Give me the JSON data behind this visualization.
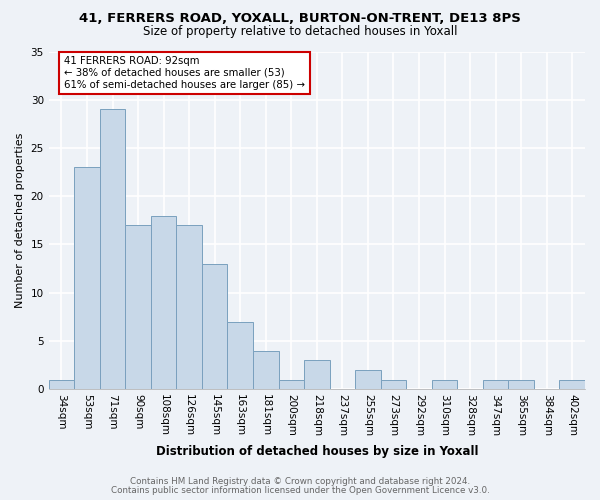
{
  "title1": "41, FERRERS ROAD, YOXALL, BURTON-ON-TRENT, DE13 8PS",
  "title2": "Size of property relative to detached houses in Yoxall",
  "xlabel": "Distribution of detached houses by size in Yoxall",
  "ylabel": "Number of detached properties",
  "footnote1": "Contains HM Land Registry data © Crown copyright and database right 2024.",
  "footnote2": "Contains public sector information licensed under the Open Government Licence v3.0.",
  "bar_labels": [
    "34sqm",
    "53sqm",
    "71sqm",
    "90sqm",
    "108sqm",
    "126sqm",
    "145sqm",
    "163sqm",
    "181sqm",
    "200sqm",
    "218sqm",
    "237sqm",
    "255sqm",
    "273sqm",
    "292sqm",
    "310sqm",
    "328sqm",
    "347sqm",
    "365sqm",
    "384sqm",
    "402sqm"
  ],
  "bar_values": [
    1,
    23,
    29,
    17,
    18,
    17,
    13,
    7,
    4,
    1,
    3,
    0,
    2,
    1,
    0,
    1,
    0,
    1,
    1,
    0,
    1
  ],
  "bar_color": "#c8d8e8",
  "bar_edge_color": "#7aa0be",
  "annotation_text": "41 FERRERS ROAD: 92sqm\n← 38% of detached houses are smaller (53)\n61% of semi-detached houses are larger (85) →",
  "annotation_box_color": "white",
  "annotation_box_edge": "#cc0000",
  "ylim": [
    0,
    35
  ],
  "yticks": [
    0,
    5,
    10,
    15,
    20,
    25,
    30,
    35
  ],
  "bg_color": "#eef2f7",
  "grid_color": "white",
  "title_fontsize": 9.5,
  "subtitle_fontsize": 8.5,
  "ylabel_fontsize": 8.0,
  "xlabel_fontsize": 8.5,
  "tick_fontsize": 7.5,
  "footnote_fontsize": 6.3,
  "footnote_color": "#666666"
}
